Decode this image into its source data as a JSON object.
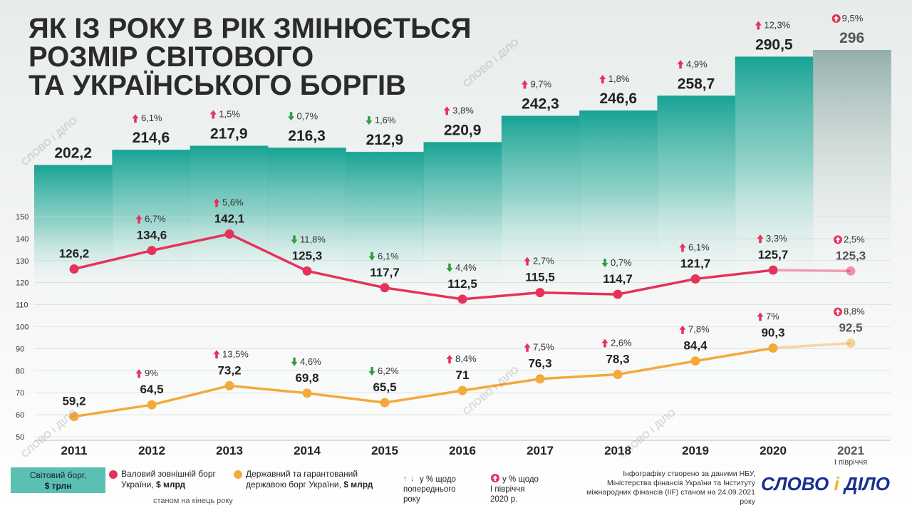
{
  "title": {
    "line1": "ЯК ІЗ РОКУ В РІК ЗМІНЮЄТЬСЯ",
    "line2": "РОЗМІР СВІТОВОГО",
    "line3": "ТА УКРАЇНСЬКОГО БОРГІВ"
  },
  "watermark": "СЛОВО і ДІЛО",
  "colors": {
    "world": "#1aa79a",
    "external": "#e6325a",
    "state": "#f4a93b",
    "up": "#e6325a",
    "down": "#2e9e3e"
  },
  "chart_data": {
    "type": "line",
    "categories": [
      "2011",
      "2012",
      "2013",
      "2014",
      "2015",
      "2016",
      "2017",
      "2018",
      "2019",
      "2020",
      "2021"
    ],
    "category_sublabels": [
      "",
      "",
      "",
      "",
      "",
      "",
      "",
      "",
      "",
      "",
      "І півріччя"
    ],
    "ylim": [
      50,
      150
    ],
    "yticks": [
      "50",
      "60",
      "70",
      "80",
      "90",
      "100",
      "110",
      "120",
      "130",
      "140",
      "150"
    ],
    "world_debt": {
      "name": "Світовий борг, $ трлн",
      "values": [
        202.2,
        214.6,
        217.9,
        216.3,
        212.9,
        220.9,
        242.3,
        246.6,
        258.7,
        290.5,
        296
      ],
      "labels": [
        "202,2",
        "214,6",
        "217,9",
        "216,3",
        "212,9",
        "220,9",
        "242,3",
        "246,6",
        "258,7",
        "290,5",
        "296"
      ],
      "changes": [
        "",
        "6,1%",
        "1,5%",
        "0,7%",
        "1,6%",
        "3,8%",
        "9,7%",
        "1,8%",
        "4,9%",
        "12,3%",
        "9,5%"
      ],
      "directions": [
        "",
        "up",
        "up",
        "down",
        "down",
        "up",
        "up",
        "up",
        "up",
        "up",
        "up-h1"
      ]
    },
    "series": [
      {
        "name": "Валовий зовнішній борг України, $ млрд",
        "values": [
          126.2,
          134.6,
          142.1,
          125.3,
          117.7,
          112.5,
          115.5,
          114.7,
          121.7,
          125.7,
          125.3
        ],
        "labels": [
          "126,2",
          "134,6",
          "142,1",
          "125,3",
          "117,7",
          "112,5",
          "115,5",
          "114,7",
          "121,7",
          "125,7",
          "125,3"
        ],
        "changes": [
          "",
          "6,7%",
          "5,6%",
          "11,8%",
          "6,1%",
          "4,4%",
          "2,7%",
          "0,7%",
          "6,1%",
          "3,3%",
          "2,5%"
        ],
        "directions": [
          "",
          "up",
          "up",
          "down",
          "down",
          "down",
          "up",
          "down",
          "up",
          "up",
          "up-h1"
        ]
      },
      {
        "name": "Державний та гарантований державою борг України, $ млрд",
        "values": [
          59.2,
          64.5,
          73.2,
          69.8,
          65.5,
          71,
          76.3,
          78.3,
          84.4,
          90.3,
          92.5
        ],
        "labels": [
          "59,2",
          "64,5",
          "73,2",
          "69,8",
          "65,5",
          "71",
          "76,3",
          "78,3",
          "84,4",
          "90,3",
          "92,5"
        ],
        "changes": [
          "",
          "9%",
          "13,5%",
          "4,6%",
          "6,2%",
          "8,4%",
          "7,5%",
          "2,6%",
          "7,8%",
          "7%",
          "8,8%"
        ],
        "directions": [
          "",
          "up",
          "up",
          "down",
          "down",
          "up",
          "up",
          "up",
          "up",
          "up",
          "up-h1"
        ]
      }
    ]
  },
  "legend": {
    "world_line1": "Світовий борг,",
    "world_line2": "$ трлн",
    "external_line1": "Валовий зовнішній борг",
    "external_line2_a": "України, ",
    "external_line2_b": "$ млрд",
    "state_line1": "Державний та гарантований",
    "state_line2_a": "державою борг України, ",
    "state_line2_b": "$ млрд",
    "end_of_year": "станом на кінець року",
    "prev_line1": "у % щодо",
    "prev_line2": "попереднього",
    "prev_line3": "року",
    "h1_line1": "у % щодо",
    "h1_line2": "І півріччя",
    "h1_line3": "2020 р.",
    "source_line1": "Інфографіку створено за даними НБУ,",
    "source_line2": "Міністерства фінансів України та Інституту",
    "source_line3": "міжнародних фінансів (IIF) станом на 24.09.2021 року",
    "logo_a": "СЛОВО ",
    "logo_b": "і",
    "logo_c": " ДІЛО"
  }
}
